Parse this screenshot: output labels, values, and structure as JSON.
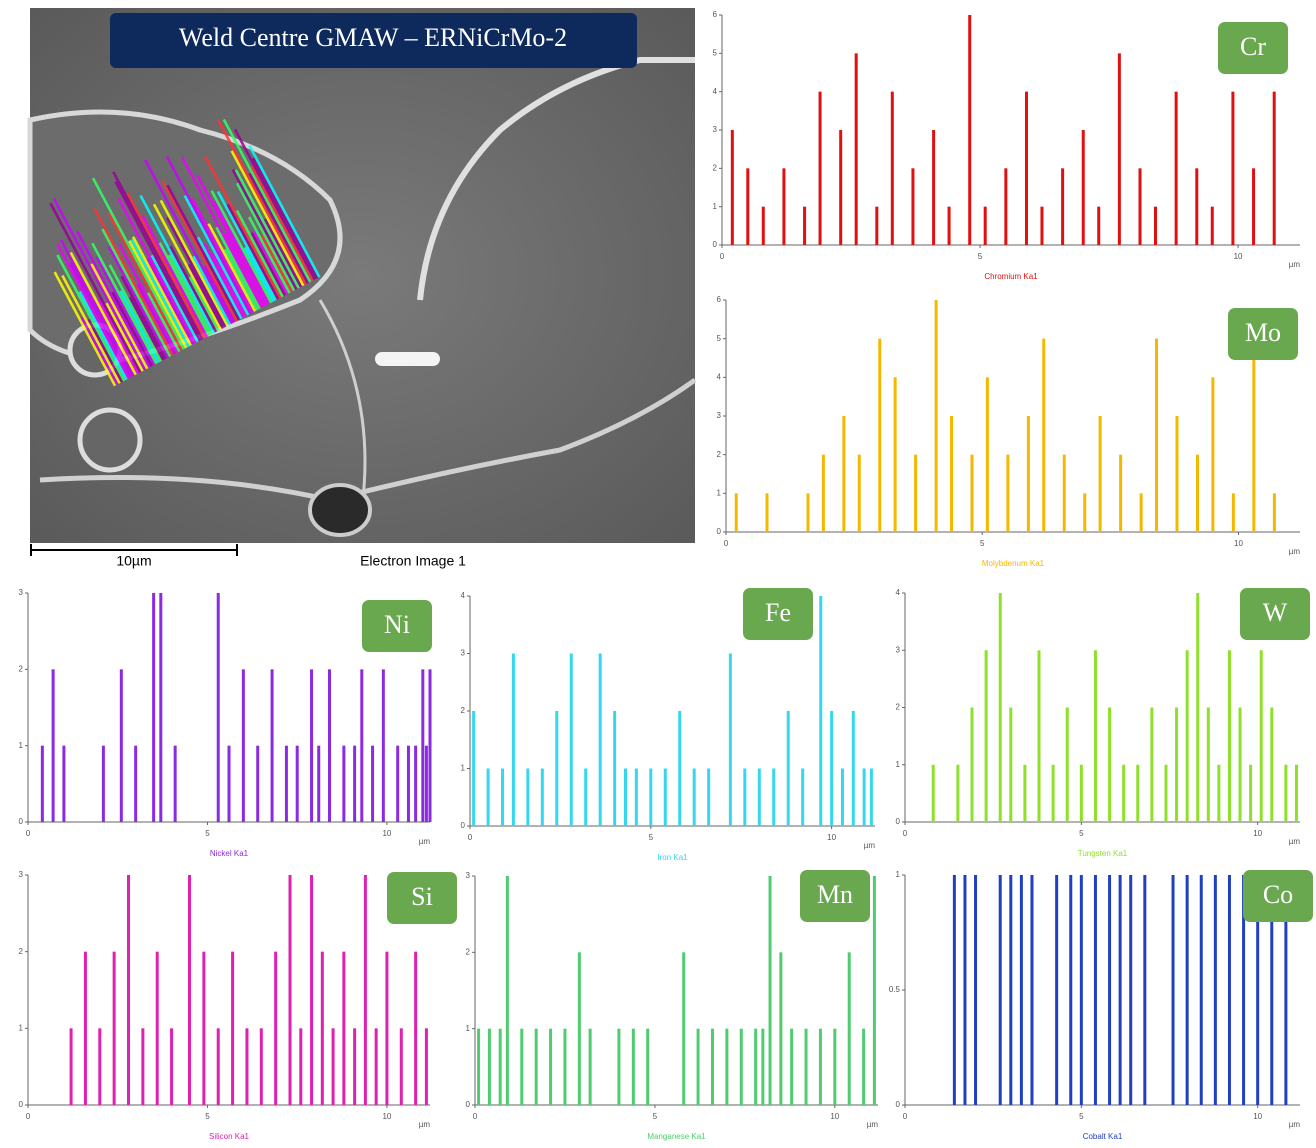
{
  "image": {
    "title": "Weld Centre GMAW – ERNiCrMo-2",
    "scale_label": "10µm",
    "caption": "Electron Image 1"
  },
  "chart_data": [
    {
      "type": "bar",
      "badge": "Cr",
      "x_label": "Chromium Ka1",
      "unit": "µm",
      "color": "#e01010",
      "x": [
        0.2,
        0.5,
        0.8,
        1.2,
        1.6,
        1.9,
        2.3,
        2.6,
        3.0,
        3.3,
        3.7,
        4.1,
        4.4,
        4.8,
        5.1,
        5.5,
        5.9,
        6.2,
        6.6,
        7.0,
        7.3,
        7.7,
        8.1,
        8.4,
        8.8,
        9.2,
        9.5,
        9.9,
        10.3,
        10.7
      ],
      "values": [
        3,
        2,
        1,
        2,
        1,
        4,
        3,
        5,
        1,
        4,
        2,
        3,
        1,
        6,
        1,
        2,
        4,
        1,
        2,
        3,
        1,
        5,
        2,
        1,
        4,
        2,
        1,
        4,
        2,
        4
      ],
      "xlim": [
        0,
        11.2
      ],
      "xticks": [
        0,
        5,
        10
      ],
      "ylim": [
        0,
        6
      ],
      "yticks": [
        0,
        1,
        2,
        3,
        4,
        5,
        6
      ]
    },
    {
      "type": "bar",
      "badge": "Mo",
      "x_label": "Molybdenum Ka1",
      "unit": "µm",
      "color": "#f5b800",
      "x": [
        0.2,
        0.5,
        0.8,
        1.2,
        1.6,
        1.9,
        2.3,
        2.6,
        3.0,
        3.3,
        3.7,
        4.1,
        4.4,
        4.8,
        5.1,
        5.5,
        5.9,
        6.2,
        6.6,
        7.0,
        7.3,
        7.7,
        8.1,
        8.4,
        8.8,
        9.2,
        9.5,
        9.9,
        10.3,
        10.7
      ],
      "values": [
        1,
        0,
        1,
        0,
        1,
        2,
        3,
        2,
        5,
        4,
        2,
        6,
        3,
        2,
        4,
        2,
        3,
        5,
        2,
        1,
        3,
        2,
        1,
        5,
        3,
        2,
        4,
        1,
        5,
        1
      ],
      "xlim": [
        0,
        11.2
      ],
      "xticks": [
        0,
        5,
        10
      ],
      "ylim": [
        0,
        6
      ],
      "yticks": [
        0,
        1,
        2,
        3,
        4,
        5,
        6
      ]
    },
    {
      "type": "bar",
      "badge": "Ni",
      "x_label": "Nickel Ka1",
      "unit": "µm",
      "color": "#8a2be2",
      "x": [
        0.4,
        0.7,
        1.0,
        2.1,
        2.6,
        3.0,
        3.5,
        3.7,
        4.1,
        5.3,
        5.6,
        6.0,
        6.4,
        6.8,
        7.2,
        7.5,
        7.9,
        8.1,
        8.4,
        8.8,
        9.1,
        9.3,
        9.6,
        9.9,
        10.3,
        10.6,
        10.8,
        11.0,
        11.1,
        11.2
      ],
      "values": [
        1,
        2,
        1,
        1,
        2,
        1,
        3,
        3,
        1,
        3,
        1,
        2,
        1,
        2,
        1,
        1,
        2,
        1,
        2,
        1,
        1,
        2,
        1,
        2,
        1,
        1,
        1,
        2,
        1,
        2
      ],
      "xlim": [
        0,
        11.2
      ],
      "xticks": [
        0,
        5,
        10
      ],
      "ylim": [
        0,
        3
      ],
      "yticks": [
        0,
        1,
        2,
        3
      ]
    },
    {
      "type": "bar",
      "badge": "Fe",
      "x_label": "Iron Ka1",
      "unit": "µm",
      "color": "#33d8ee",
      "x": [
        0.1,
        0.5,
        0.9,
        1.2,
        1.6,
        2.0,
        2.4,
        2.8,
        3.2,
        3.6,
        4.0,
        4.3,
        4.6,
        5.0,
        5.4,
        5.8,
        6.2,
        6.6,
        7.2,
        7.6,
        8.0,
        8.4,
        8.8,
        9.2,
        9.7,
        10.0,
        10.3,
        10.6,
        10.9,
        11.1
      ],
      "values": [
        2,
        1,
        1,
        3,
        1,
        1,
        2,
        3,
        1,
        3,
        2,
        1,
        1,
        1,
        1,
        2,
        1,
        1,
        3,
        1,
        1,
        1,
        2,
        1,
        4,
        2,
        1,
        2,
        1,
        1
      ],
      "xlim": [
        0,
        11.2
      ],
      "xticks": [
        0,
        5,
        10
      ],
      "ylim": [
        0,
        4
      ],
      "yticks": [
        0,
        1,
        2,
        3,
        4
      ]
    },
    {
      "type": "bar",
      "badge": "W",
      "x_label": "Tungsten Ka1",
      "unit": "µm",
      "color": "#8fe02a",
      "x": [
        0.8,
        1.2,
        1.5,
        1.9,
        2.3,
        2.7,
        3.0,
        3.4,
        3.8,
        4.2,
        4.6,
        5.0,
        5.4,
        5.8,
        6.2,
        6.6,
        7.0,
        7.4,
        7.7,
        8.0,
        8.3,
        8.6,
        8.9,
        9.2,
        9.5,
        9.8,
        10.1,
        10.4,
        10.8,
        11.1
      ],
      "values": [
        1,
        0,
        1,
        2,
        3,
        4,
        2,
        1,
        3,
        1,
        2,
        1,
        3,
        2,
        1,
        1,
        2,
        1,
        2,
        3,
        4,
        2,
        1,
        3,
        2,
        1,
        3,
        2,
        1,
        1
      ],
      "xlim": [
        0,
        11.2
      ],
      "xticks": [
        0,
        5,
        10
      ],
      "ylim": [
        0,
        4
      ],
      "yticks": [
        0,
        1,
        2,
        3,
        4
      ]
    },
    {
      "type": "bar",
      "badge": "Si",
      "x_label": "Silicon Ka1",
      "unit": "µm",
      "color": "#e020b0",
      "x": [
        0.2,
        0.6,
        1.2,
        1.6,
        2.0,
        2.4,
        2.8,
        3.2,
        3.6,
        4.0,
        4.5,
        4.9,
        5.3,
        5.7,
        6.1,
        6.5,
        6.9,
        7.3,
        7.6,
        7.9,
        8.2,
        8.5,
        8.8,
        9.1,
        9.4,
        9.7,
        10.0,
        10.4,
        10.8,
        11.1
      ],
      "values": [
        0,
        0,
        1,
        2,
        1,
        2,
        3,
        1,
        2,
        1,
        3,
        2,
        1,
        2,
        1,
        1,
        2,
        3,
        1,
        3,
        2,
        1,
        2,
        1,
        3,
        1,
        2,
        1,
        2,
        1
      ],
      "xlim": [
        0,
        11.2
      ],
      "xticks": [
        0,
        5,
        10
      ],
      "ylim": [
        0,
        3
      ],
      "yticks": [
        0,
        1,
        2,
        3
      ]
    },
    {
      "type": "bar",
      "badge": "Mn",
      "x_label": "Manganese Ka1",
      "unit": "µm",
      "color": "#50cc70",
      "x": [
        0.1,
        0.4,
        0.7,
        0.9,
        1.3,
        1.7,
        2.1,
        2.5,
        2.9,
        3.2,
        3.6,
        4.0,
        4.4,
        4.8,
        5.8,
        6.2,
        6.6,
        7.0,
        7.4,
        7.8,
        8.0,
        8.2,
        8.5,
        8.8,
        9.2,
        9.6,
        10.0,
        10.4,
        10.8,
        11.1
      ],
      "values": [
        1,
        1,
        1,
        3,
        1,
        1,
        1,
        1,
        2,
        1,
        0,
        1,
        1,
        1,
        2,
        1,
        1,
        1,
        1,
        1,
        1,
        3,
        2,
        1,
        1,
        1,
        1,
        2,
        1,
        3
      ],
      "xlim": [
        0,
        11.2
      ],
      "xticks": [
        0,
        5,
        10
      ],
      "ylim": [
        0,
        3
      ],
      "yticks": [
        0,
        1,
        2,
        3
      ]
    },
    {
      "type": "bar",
      "badge": "Co",
      "x_label": "Cobalt Ka1",
      "unit": "µm",
      "color": "#2040c0",
      "x": [
        0.3,
        0.8,
        1.2,
        1.4,
        1.7,
        2.0,
        2.4,
        2.7,
        3.0,
        3.3,
        3.6,
        4.0,
        4.3,
        4.7,
        5.0,
        5.4,
        5.8,
        6.1,
        6.4,
        6.8,
        7.2,
        7.6,
        8.0,
        8.4,
        8.8,
        9.2,
        9.6,
        10.0,
        10.4,
        10.8
      ],
      "values": [
        0,
        0,
        0,
        1,
        1,
        1,
        0,
        1,
        1,
        1,
        1,
        0,
        1,
        1,
        1,
        1,
        1,
        1,
        1,
        1,
        0,
        1,
        1,
        1,
        1,
        1,
        1,
        1,
        1,
        1
      ],
      "xlim": [
        0,
        11.2
      ],
      "xticks": [
        0,
        5,
        10
      ],
      "ylim": [
        0,
        1
      ],
      "yticks": [
        0,
        0.5,
        1
      ]
    }
  ]
}
